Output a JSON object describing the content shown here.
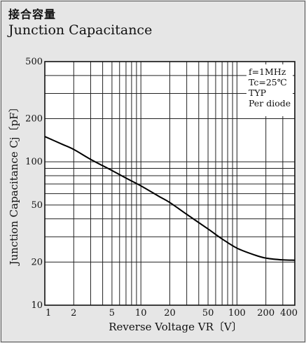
{
  "header": {
    "title_jp": "接合容量",
    "title_en": "Junction Capacitance"
  },
  "chart_data": {
    "type": "line",
    "xscale": "log",
    "yscale": "log",
    "xlim": [
      1,
      400
    ],
    "ylim": [
      10,
      500
    ],
    "xticks": [
      1,
      2,
      5,
      10,
      20,
      50,
      100,
      200,
      400
    ],
    "xtick_labels": [
      "1",
      "2",
      "5",
      "10",
      "20",
      "50",
      "100",
      "200",
      "400"
    ],
    "yticks": [
      10,
      20,
      50,
      100,
      200,
      500
    ],
    "ytick_labels": [
      "10",
      "20",
      "50",
      "100",
      "200",
      "500"
    ],
    "xlabel": "Reverse Voltage  VR〔V〕",
    "ylabel": "Junction Capacitance  Cj〔pF〕",
    "grid": true,
    "annotations": [
      "f=1MHz",
      "Tc=25℃",
      "TYP",
      "Per diode"
    ],
    "series": [
      {
        "x": [
          1,
          1.5,
          2,
          3,
          5,
          7,
          10,
          15,
          20,
          30,
          50,
          70,
          100,
          150,
          200,
          300,
          400
        ],
        "y": [
          150,
          133,
          122,
          104,
          87,
          77,
          68,
          58,
          52,
          43,
          34,
          29,
          25,
          22.5,
          21.3,
          20.7,
          20.6
        ]
      }
    ]
  }
}
